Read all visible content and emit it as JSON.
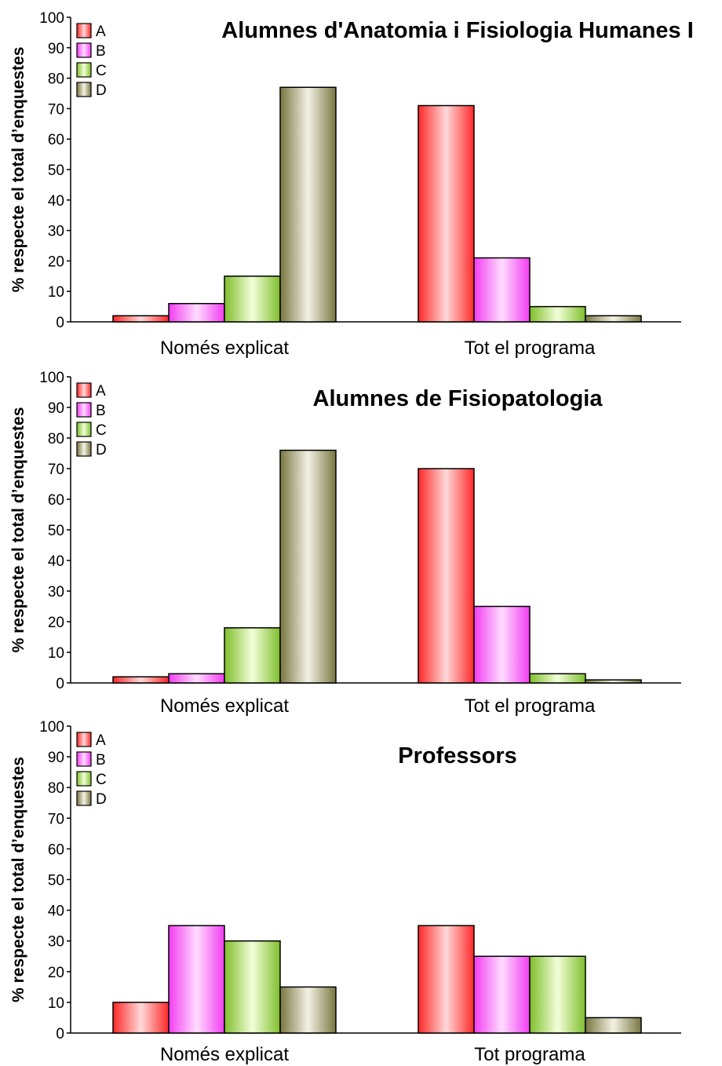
{
  "chart_data": [
    {
      "type": "bar",
      "title": "Alumnes d'Anatomia i Fisiologia Humanes I",
      "ylabel": "% respecte el total d’enquestes",
      "xlabel": "",
      "ylim": [
        0,
        100
      ],
      "yticks": [
        "0",
        "10",
        "20",
        "30",
        "40",
        "50",
        "60",
        "70",
        "80",
        "90",
        "100"
      ],
      "categories": [
        "Només explicat",
        "Tot el programa"
      ],
      "legend_position": "top-left",
      "series": [
        {
          "name": "A",
          "values": [
            2,
            71
          ]
        },
        {
          "name": "B",
          "values": [
            6,
            21
          ]
        },
        {
          "name": "C",
          "values": [
            15,
            5
          ]
        },
        {
          "name": "D",
          "values": [
            77,
            2
          ]
        }
      ]
    },
    {
      "type": "bar",
      "title": "Alumnes de Fisiopatologia",
      "ylabel": "% respecte el total d’enquestes",
      "xlabel": "",
      "ylim": [
        0,
        100
      ],
      "yticks": [
        "0",
        "10",
        "20",
        "30",
        "40",
        "50",
        "60",
        "70",
        "80",
        "90",
        "100"
      ],
      "categories": [
        "Només explicat",
        "Tot el programa"
      ],
      "legend_position": "top-left",
      "series": [
        {
          "name": "A",
          "values": [
            2,
            70
          ]
        },
        {
          "name": "B",
          "values": [
            3,
            25
          ]
        },
        {
          "name": "C",
          "values": [
            18,
            3
          ]
        },
        {
          "name": "D",
          "values": [
            76,
            1
          ]
        }
      ]
    },
    {
      "type": "bar",
      "title": "Professors",
      "ylabel": "% respecte el total d’enquestes",
      "xlabel": "",
      "ylim": [
        0,
        100
      ],
      "yticks": [
        "0",
        "10",
        "20",
        "30",
        "40",
        "50",
        "60",
        "70",
        "80",
        "90",
        "100"
      ],
      "categories": [
        "Només explicat",
        "Tot programa"
      ],
      "legend_position": "top-left",
      "series": [
        {
          "name": "A",
          "values": [
            10,
            35
          ]
        },
        {
          "name": "B",
          "values": [
            35,
            25
          ]
        },
        {
          "name": "C",
          "values": [
            30,
            25
          ]
        },
        {
          "name": "D",
          "values": [
            15,
            5
          ]
        }
      ]
    }
  ],
  "series_colors": {
    "A": {
      "light": "#ffd9d9",
      "dark": "#ff2828"
    },
    "B": {
      "light": "#ffdcff",
      "dark": "#f23cf2"
    },
    "C": {
      "light": "#f2ffd9",
      "dark": "#7fbe2c"
    },
    "D": {
      "light": "#f4f2e4",
      "dark": "#787640"
    }
  }
}
